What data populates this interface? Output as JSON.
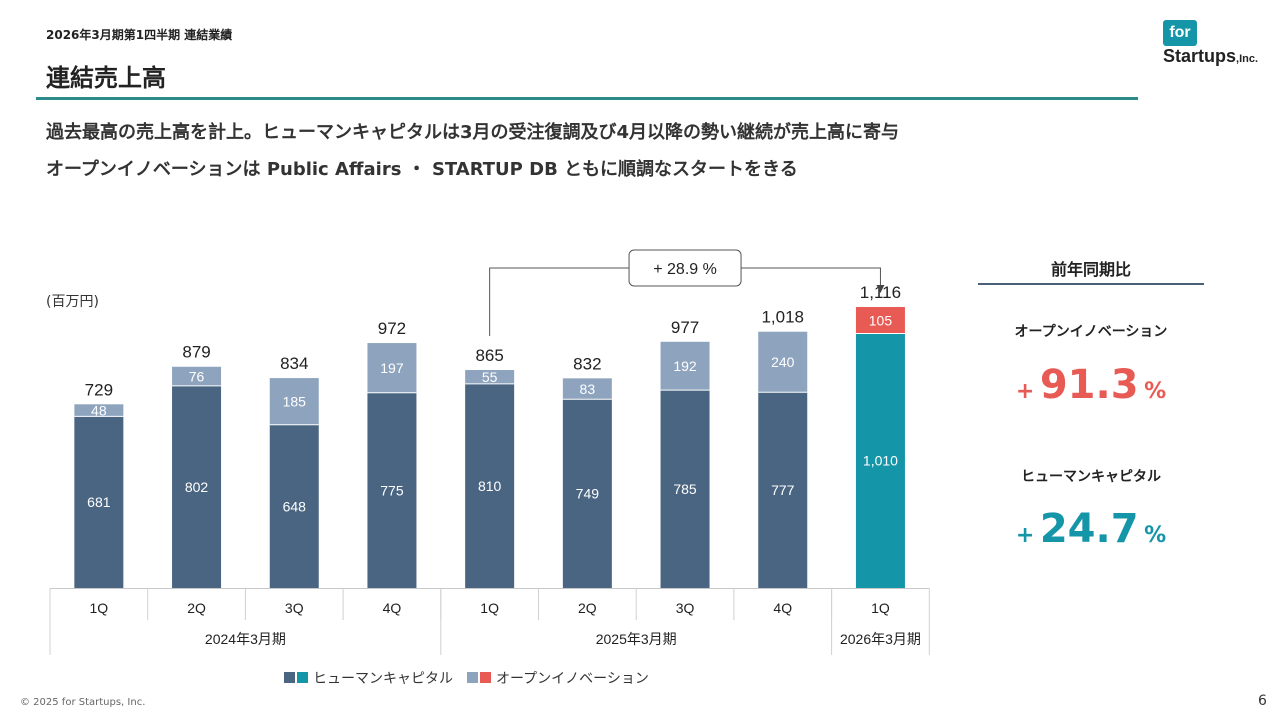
{
  "header": {
    "subtitle": "2026年3月期第1四半期 連結業績",
    "title": "連結売上高",
    "headline_1": "過去最高の売上高を計上。ヒューマンキャピタルは3月の受注復調及び4月以降の勢い継続が売上高に寄与",
    "headline_2": "オープンイノベーションは Public Affairs ・ STARTUP DB ともに順調なスタートをきる"
  },
  "logo": {
    "top": "for",
    "bottom": "Startups",
    "suffix": ",Inc."
  },
  "chart_data": {
    "type": "bar",
    "stacked": true,
    "unit_label": "(百万円)",
    "categories": [
      "1Q",
      "2Q",
      "3Q",
      "4Q",
      "1Q",
      "2Q",
      "3Q",
      "4Q",
      "1Q"
    ],
    "periods": [
      {
        "label": "2024年3月期",
        "count": 4
      },
      {
        "label": "2025年3月期",
        "count": 4
      },
      {
        "label": "2026年3月期",
        "count": 1
      }
    ],
    "series": [
      {
        "name": "ヒューマンキャピタル",
        "values": [
          681,
          802,
          648,
          775,
          810,
          749,
          785,
          777,
          1010
        ],
        "labels": [
          "681",
          "802",
          "648",
          "775",
          "810",
          "749",
          "785",
          "777",
          "1,010"
        ]
      },
      {
        "name": "オープンイノベーション",
        "values": [
          48,
          76,
          185,
          197,
          55,
          83,
          192,
          240,
          105
        ],
        "labels": [
          "48",
          "76",
          "185",
          "197",
          "55",
          "83",
          "192",
          "240",
          "105"
        ]
      }
    ],
    "totals": [
      "729",
      "879",
      "834",
      "972",
      "865",
      "832",
      "977",
      "1,018",
      "1,116"
    ],
    "colors": {
      "human_capital": "#4a6582",
      "open_innovation": "#8ea4be",
      "human_capital_highlight": "#1495a8",
      "open_innovation_highlight": "#e85a54"
    },
    "highlight_index": 8,
    "annotation": {
      "text": "+ 28.9 %",
      "from_index": 4,
      "to_index": 8
    },
    "legend": [
      {
        "label": "ヒューマンキャピタル",
        "colors": [
          "#4a6582",
          "#1495a8"
        ]
      },
      {
        "label": "オープンイノベーション",
        "colors": [
          "#8ea4be",
          "#e85a54"
        ]
      }
    ],
    "ylim": [
      0,
      1200
    ]
  },
  "yoy": {
    "title": "前年同期比",
    "items": [
      {
        "label": "オープンイノベーション",
        "sign": "+",
        "value": "91.3",
        "pct": "%",
        "color": "#e85a54"
      },
      {
        "label": "ヒューマンキャピタル",
        "sign": "+",
        "value": "24.7",
        "pct": "%",
        "color": "#1495a8"
      }
    ]
  },
  "footer": {
    "copyright": "© 2025 for Startups, Inc.",
    "page": "6"
  }
}
